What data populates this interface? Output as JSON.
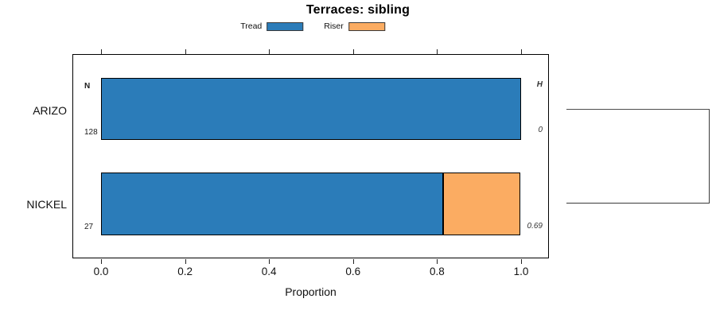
{
  "title": "Terraces: sibling",
  "legend": {
    "items": [
      {
        "label": "Tread",
        "color": "#2B7CB9"
      },
      {
        "label": "Riser",
        "color": "#FBAC62"
      }
    ]
  },
  "chart_data": {
    "type": "bar",
    "orientation": "horizontal",
    "stacked": true,
    "title": "Terraces: sibling",
    "xlabel": "Proportion",
    "xlim": [
      0,
      1
    ],
    "xticks": [
      "0.0",
      "0.2",
      "0.4",
      "0.6",
      "0.8",
      "1.0"
    ],
    "grid": false,
    "legend_position": "top-center",
    "categories": [
      "ARIZO",
      "NICKEL"
    ],
    "series": [
      {
        "name": "Tread",
        "color": "#2B7CB9",
        "values": [
          1.0,
          0.815
        ]
      },
      {
        "name": "Riser",
        "color": "#FBAC62",
        "values": [
          0.0,
          0.185
        ]
      }
    ],
    "row_annotations": {
      "n_header": "N",
      "h_header": "H",
      "n_values": [
        "128",
        "27"
      ],
      "h_values": [
        "0",
        "0.69"
      ]
    },
    "right_panel": "two-leaf dendrogram bracket joining ARIZO and NICKEL"
  }
}
